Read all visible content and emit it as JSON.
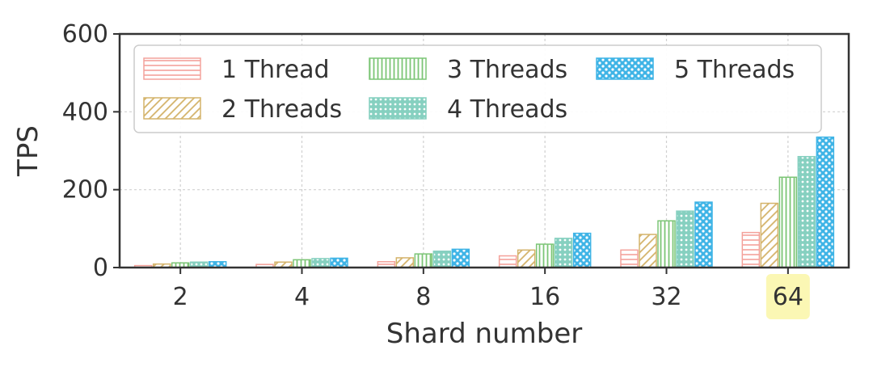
{
  "chart_data": {
    "type": "bar",
    "xlabel": "Shard number",
    "ylabel": "TPS",
    "ylim": [
      0,
      600
    ],
    "yticks": [
      "0",
      "200",
      "400",
      "600"
    ],
    "categories": [
      "2",
      "4",
      "8",
      "16",
      "32",
      "64"
    ],
    "highlighted_category": "64",
    "grid": true,
    "legend_position": "top",
    "series": [
      {
        "name": "1 Thread",
        "color": "#f4a29b",
        "pattern": "horizontal-lines",
        "values": [
          5,
          8,
          15,
          30,
          45,
          90
        ]
      },
      {
        "name": "2 Threads",
        "color": "#d4b36a",
        "pattern": "diagonal-lines",
        "values": [
          9,
          14,
          25,
          45,
          85,
          165
        ]
      },
      {
        "name": "3 Threads",
        "color": "#7cc576",
        "pattern": "vertical-lines",
        "values": [
          12,
          20,
          35,
          60,
          120,
          232
        ]
      },
      {
        "name": "4 Threads",
        "color": "#86d0c0",
        "pattern": "dots",
        "values": [
          14,
          23,
          42,
          75,
          145,
          285
        ]
      },
      {
        "name": "5 Threads",
        "color": "#3fb4e6",
        "pattern": "crosshatch",
        "values": [
          15,
          24,
          47,
          88,
          168,
          335
        ]
      }
    ]
  }
}
